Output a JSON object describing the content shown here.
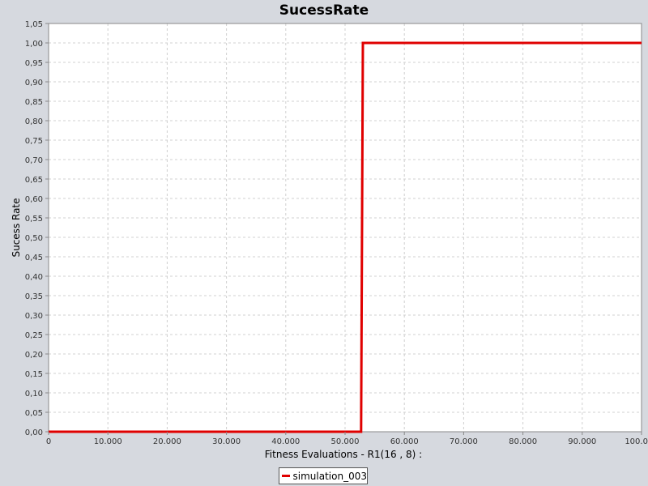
{
  "chart_data": {
    "type": "line",
    "title": "SucessRate",
    "xlabel": "Fitness Evaluations - R1(16 , 8) :",
    "ylabel": "Sucess Rate",
    "xlim": [
      0,
      100000
    ],
    "ylim": [
      0,
      1.05
    ],
    "grid": true,
    "legend_position": "bottom-center",
    "x_ticks": [
      "0",
      "10.000",
      "20.000",
      "30.000",
      "40.000",
      "50.000",
      "60.000",
      "70.000",
      "80.000",
      "90.000",
      "100.000"
    ],
    "x_tick_values": [
      0,
      10000,
      20000,
      30000,
      40000,
      50000,
      60000,
      70000,
      80000,
      90000,
      100000
    ],
    "y_ticks": [
      "0,00",
      "0,05",
      "0,10",
      "0,15",
      "0,20",
      "0,25",
      "0,30",
      "0,35",
      "0,40",
      "0,45",
      "0,50",
      "0,55",
      "0,60",
      "0,65",
      "0,70",
      "0,75",
      "0,80",
      "0,85",
      "0,90",
      "0,95",
      "1,00",
      "1,05"
    ],
    "y_tick_values": [
      0,
      0.05,
      0.1,
      0.15,
      0.2,
      0.25,
      0.3,
      0.35,
      0.4,
      0.45,
      0.5,
      0.55,
      0.6,
      0.65,
      0.7,
      0.75,
      0.8,
      0.85,
      0.9,
      0.95,
      1.0,
      1.05
    ],
    "series": [
      {
        "name": "simulation_003",
        "color": "#e00000",
        "x": [
          0,
          52700,
          53000,
          100000
        ],
        "y": [
          0,
          0,
          1.0,
          1.0
        ]
      }
    ]
  }
}
